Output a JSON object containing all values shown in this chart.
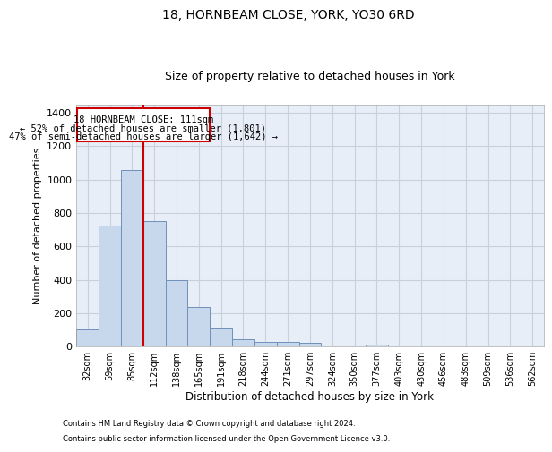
{
  "title": "18, HORNBEAM CLOSE, YORK, YO30 6RD",
  "subtitle": "Size of property relative to detached houses in York",
  "xlabel": "Distribution of detached houses by size in York",
  "ylabel": "Number of detached properties",
  "footnote1": "Contains HM Land Registry data © Crown copyright and database right 2024.",
  "footnote2": "Contains public sector information licensed under the Open Government Licence v3.0.",
  "annotation_line1": "18 HORNBEAM CLOSE: 111sqm",
  "annotation_line2": "← 52% of detached houses are smaller (1,801)",
  "annotation_line3": "47% of semi-detached houses are larger (1,642) →",
  "bar_color": "#c8d8ec",
  "bar_edge_color": "#7090b8",
  "red_line_bar_index": 3,
  "red_line_color": "#cc0000",
  "annotation_box_color": "#cc0000",
  "background_color": "#ffffff",
  "plot_bg_color": "#e8eef8",
  "grid_color": "#c8d0dc",
  "categories": [
    "32sqm",
    "59sqm",
    "85sqm",
    "112sqm",
    "138sqm",
    "165sqm",
    "191sqm",
    "218sqm",
    "244sqm",
    "271sqm",
    "297sqm",
    "324sqm",
    "350sqm",
    "377sqm",
    "403sqm",
    "430sqm",
    "456sqm",
    "483sqm",
    "509sqm",
    "536sqm",
    "562sqm"
  ],
  "values": [
    105,
    725,
    1055,
    750,
    400,
    235,
    110,
    45,
    28,
    28,
    20,
    0,
    0,
    12,
    0,
    0,
    0,
    0,
    0,
    0,
    0
  ],
  "ylim": [
    0,
    1450
  ],
  "yticks": [
    0,
    200,
    400,
    600,
    800,
    1000,
    1200,
    1400
  ],
  "title_fontsize": 10,
  "subtitle_fontsize": 9,
  "footnote_fontsize": 6,
  "annotation_fontsize": 7.5,
  "ylabel_fontsize": 8,
  "xlabel_fontsize": 8.5
}
